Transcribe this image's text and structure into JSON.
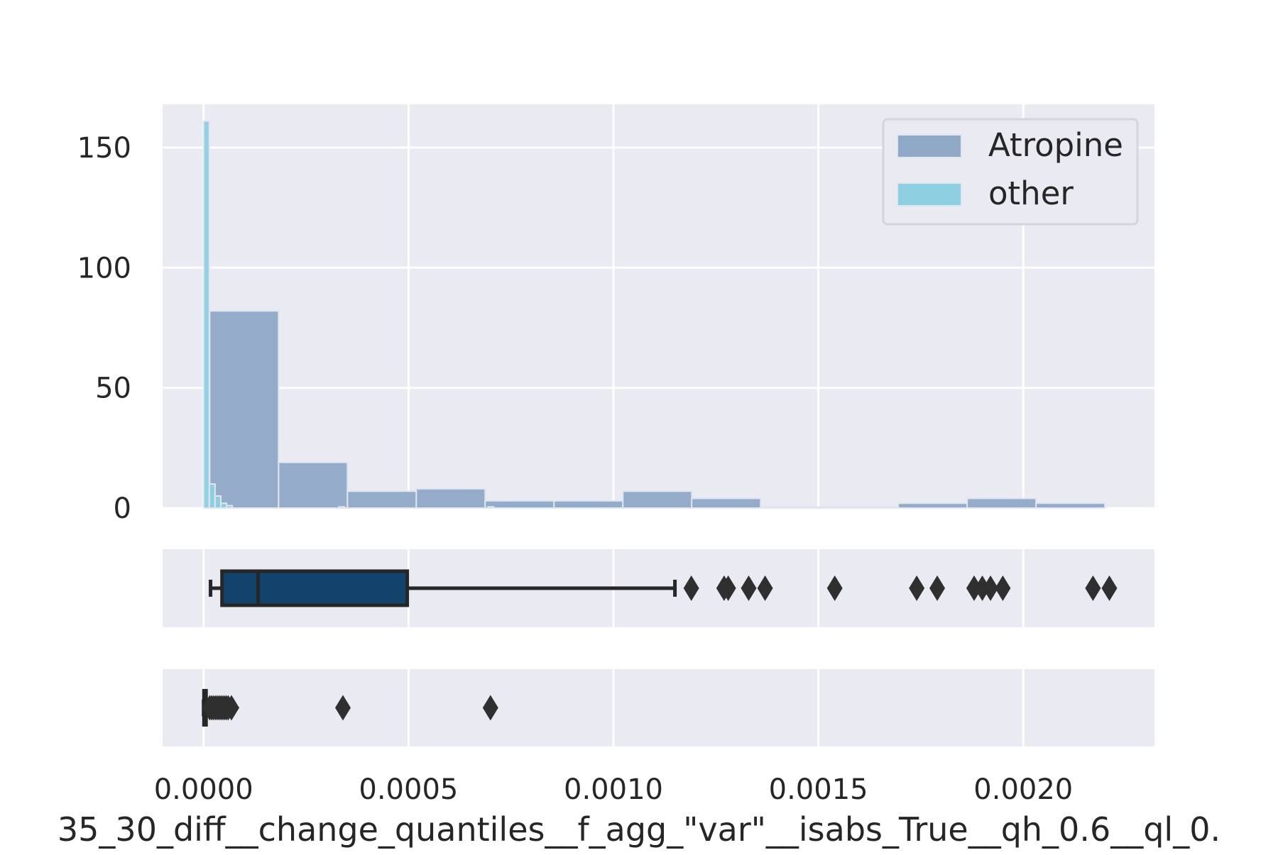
{
  "chart_data": {
    "type": "histogram-with-boxplots",
    "xlabel": "35_30_diff__change_quantiles__f_agg_\"var\"__isabs_True__qh_0.6__ql_0.",
    "x_ticks": [
      {
        "value": 0.0,
        "label": "0.0000"
      },
      {
        "value": 0.0005,
        "label": "0.0005"
      },
      {
        "value": 0.001,
        "label": "0.0010"
      },
      {
        "value": 0.0015,
        "label": "0.0015"
      },
      {
        "value": 0.002,
        "label": "0.0020"
      }
    ],
    "xlim": [
      -0.0001,
      0.00232
    ],
    "histogram": {
      "ylim": [
        0,
        168
      ],
      "y_ticks": [
        {
          "value": 0,
          "label": "0"
        },
        {
          "value": 50,
          "label": "50"
        },
        {
          "value": 100,
          "label": "100"
        },
        {
          "value": 150,
          "label": "150"
        }
      ],
      "legend": {
        "position": "top-right"
      },
      "series": [
        {
          "name": "Atropine",
          "color": "#8fa9c6",
          "bins": [
            {
              "x0": 1.5e-05,
              "x1": 0.000183,
              "count": 82
            },
            {
              "x0": 0.000183,
              "x1": 0.000351,
              "count": 19
            },
            {
              "x0": 0.000351,
              "x1": 0.000519,
              "count": 7
            },
            {
              "x0": 0.000519,
              "x1": 0.000687,
              "count": 8
            },
            {
              "x0": 0.000687,
              "x1": 0.000855,
              "count": 3
            },
            {
              "x0": 0.000855,
              "x1": 0.001023,
              "count": 3
            },
            {
              "x0": 0.001023,
              "x1": 0.001191,
              "count": 7
            },
            {
              "x0": 0.001191,
              "x1": 0.001359,
              "count": 4
            },
            {
              "x0": 0.001359,
              "x1": 0.001527,
              "count": 0.4
            },
            {
              "x0": 0.001527,
              "x1": 0.001695,
              "count": 0.4
            },
            {
              "x0": 0.001695,
              "x1": 0.001863,
              "count": 2
            },
            {
              "x0": 0.001863,
              "x1": 0.002031,
              "count": 4
            },
            {
              "x0": 0.002031,
              "x1": 0.002199,
              "count": 2
            }
          ]
        },
        {
          "name": "other",
          "color": "#8ecfe1",
          "bins": [
            {
              "x0": 0.0,
              "x1": 1.4e-05,
              "count": 161
            },
            {
              "x0": 1.4e-05,
              "x1": 2.8e-05,
              "count": 10
            },
            {
              "x0": 2.8e-05,
              "x1": 4.2e-05,
              "count": 5
            },
            {
              "x0": 4.2e-05,
              "x1": 5.6e-05,
              "count": 2
            },
            {
              "x0": 5.6e-05,
              "x1": 7e-05,
              "count": 1
            },
            {
              "x0": 0.00033,
              "x1": 0.000344,
              "count": 0.5
            },
            {
              "x0": 0.000694,
              "x1": 0.000708,
              "count": 0.5
            }
          ]
        }
      ]
    },
    "boxplots": [
      {
        "series": "Atropine",
        "color": "#12436d",
        "whisker_low": 1.7e-05,
        "q1": 4.5e-05,
        "median": 0.000133,
        "q3": 0.000497,
        "whisker_high": 0.00115,
        "outliers": [
          0.00119,
          0.00127,
          0.00128,
          0.00133,
          0.00137,
          0.00154,
          0.00174,
          0.00179,
          0.00188,
          0.0019,
          0.00192,
          0.00195,
          0.00217,
          0.00221
        ]
      },
      {
        "series": "other",
        "color": "#12436d",
        "whisker_low": 0.0,
        "q1": 1e-06,
        "median": 3e-06,
        "q3": 6e-06,
        "whisker_high": 1.2e-05,
        "outliers": [
          1.5e-05,
          2e-05,
          2.5e-05,
          3e-05,
          3.5e-05,
          4e-05,
          4.5e-05,
          5e-05,
          5.5e-05,
          6e-05,
          6.8e-05,
          0.00034,
          0.0007
        ]
      }
    ]
  }
}
